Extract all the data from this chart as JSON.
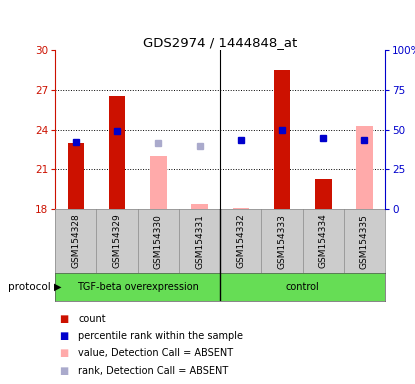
{
  "title": "GDS2974 / 1444848_at",
  "samples": [
    "GSM154328",
    "GSM154329",
    "GSM154330",
    "GSM154331",
    "GSM154332",
    "GSM154333",
    "GSM154334",
    "GSM154335"
  ],
  "ylim_left": [
    18,
    30
  ],
  "ylim_right": [
    0,
    100
  ],
  "yticks_left": [
    18,
    21,
    24,
    27,
    30
  ],
  "yticks_right": [
    0,
    25,
    50,
    75,
    100
  ],
  "ytick_labels_right": [
    "0",
    "25",
    "50",
    "75",
    "100%"
  ],
  "red_bars": [
    23.0,
    26.5,
    null,
    null,
    null,
    28.5,
    20.3,
    null
  ],
  "pink_bars": [
    null,
    null,
    22.0,
    18.4,
    18.1,
    null,
    null,
    24.3
  ],
  "blue_dots": [
    23.1,
    23.9,
    null,
    null,
    23.2,
    24.0,
    23.4,
    23.2
  ],
  "lightblue_dots": [
    null,
    null,
    23.0,
    22.8,
    null,
    null,
    null,
    null
  ],
  "bar_bottom": 18,
  "red_bar_color": "#cc1100",
  "pink_bar_color": "#ffaaaa",
  "blue_dot_color": "#0000cc",
  "lightblue_dot_color": "#aaaacc",
  "left_axis_color": "#cc1100",
  "right_axis_color": "#0000cc",
  "tick_area_bg": "#cccccc",
  "protocol_bg": "#66dd55",
  "protocol_label": "protocol",
  "group1_label": "TGF-beta overexpression",
  "group2_label": "control",
  "legend_items": [
    {
      "label": "count",
      "color": "#cc1100"
    },
    {
      "label": "percentile rank within the sample",
      "color": "#0000cc"
    },
    {
      "label": "value, Detection Call = ABSENT",
      "color": "#ffaaaa"
    },
    {
      "label": "rank, Detection Call = ABSENT",
      "color": "#aaaacc"
    }
  ]
}
